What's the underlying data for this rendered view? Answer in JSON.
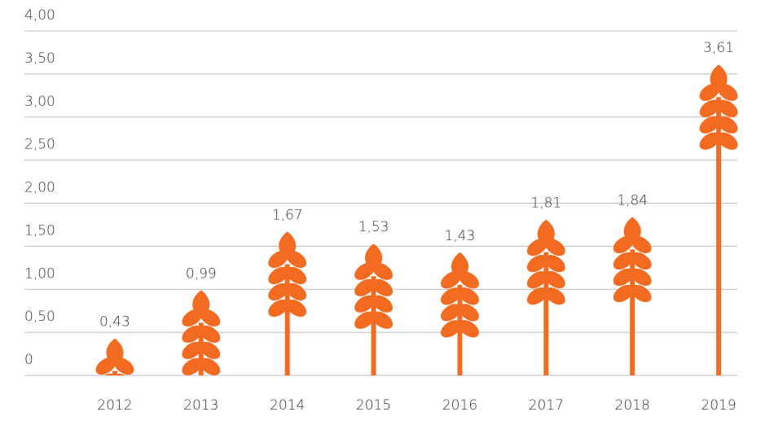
{
  "chart_data": {
    "type": "pictogram-bar",
    "categories": [
      "2012",
      "2013",
      "2014",
      "2015",
      "2016",
      "2017",
      "2018",
      "2019"
    ],
    "values": [
      0.43,
      0.99,
      1.67,
      1.53,
      1.43,
      1.81,
      1.84,
      3.61
    ],
    "value_labels": [
      "0,43",
      "0,99",
      "1,67",
      "1,53",
      "1,43",
      "1,81",
      "1,84",
      "3,61"
    ],
    "color": "#f26b21",
    "ylim": [
      0,
      4
    ],
    "yticks": [
      0,
      {
        "value": 0.5,
        "label": "0,50"
      },
      {
        "value": 1,
        "label": "1,00"
      },
      {
        "value": 1.5,
        "label": "1,50"
      },
      {
        "value": 2,
        "label": "2,00"
      },
      {
        "value": 2.5,
        "label": "2,50"
      },
      {
        "value": 3,
        "label": "3,00"
      },
      {
        "value": 3.5,
        "label": "3,50"
      },
      {
        "value": 4,
        "label": "4,00"
      }
    ],
    "grid": true
  }
}
